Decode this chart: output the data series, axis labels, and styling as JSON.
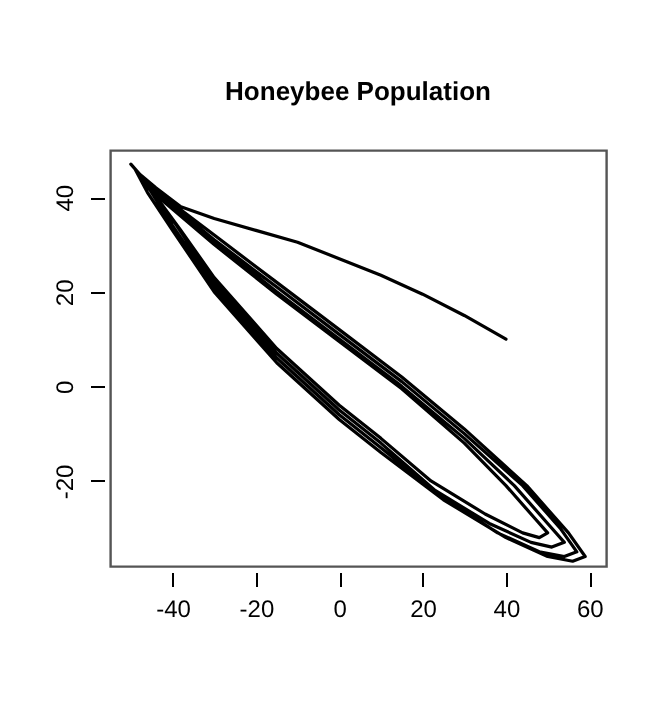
{
  "chart_data": {
    "type": "line",
    "title": "Honeybee Population",
    "xlim": [
      -55,
      64
    ],
    "xticks": [
      -40,
      -20,
      0,
      20,
      40,
      60
    ],
    "ylim": [
      -38,
      50
    ],
    "yticks": [
      -20,
      0,
      20,
      40
    ],
    "grid": false,
    "line_style": "solid",
    "series": [
      {
        "color": "#000000",
        "x": [
          40,
          30,
          20,
          10,
          0,
          -10,
          -20,
          -30,
          -38,
          -44,
          -48,
          -50,
          -45,
          -30,
          -15,
          0,
          15,
          30,
          45,
          55,
          59,
          56,
          50,
          40,
          25,
          10,
          0,
          -15,
          -30,
          -40,
          -46,
          -49,
          -44,
          -30,
          -15,
          0,
          15,
          30,
          44,
          53,
          57,
          54,
          48,
          38,
          24,
          10,
          0,
          -15,
          -30,
          -40,
          -45,
          -48,
          -43,
          -30,
          -15,
          0,
          15,
          30,
          42,
          50,
          54,
          51,
          46,
          36,
          23,
          10,
          0,
          -15,
          -30,
          -39,
          -44,
          -47,
          -42,
          -30,
          -15,
          0,
          15,
          30,
          40,
          47,
          50,
          48,
          44,
          35,
          22,
          10,
          0,
          -15,
          -30,
          -38,
          -43,
          -46
        ],
        "values": [
          10,
          15,
          19.5,
          23.5,
          27,
          30.5,
          33,
          35.5,
          38,
          42,
          45,
          47,
          42,
          32,
          22,
          12,
          2,
          -9,
          -21,
          -31,
          -36,
          -37,
          -36,
          -32,
          -24,
          -14,
          -7,
          5,
          20,
          33,
          41,
          46,
          41,
          31,
          21,
          11,
          1,
          -10,
          -21,
          -30,
          -35,
          -36,
          -35,
          -31,
          -23,
          -13,
          -6,
          6,
          21,
          34,
          41,
          45,
          40,
          30.5,
          20,
          10,
          0,
          -11,
          -21,
          -29,
          -33,
          -34,
          -33,
          -29,
          -22,
          -12,
          -5,
          7,
          22,
          34,
          40,
          44,
          39,
          30,
          19.5,
          9.5,
          -0.5,
          -12,
          -21,
          -28,
          -31,
          -32,
          -31,
          -27,
          -20,
          -11,
          -4,
          8,
          23,
          33,
          39,
          43
        ]
      }
    ]
  }
}
